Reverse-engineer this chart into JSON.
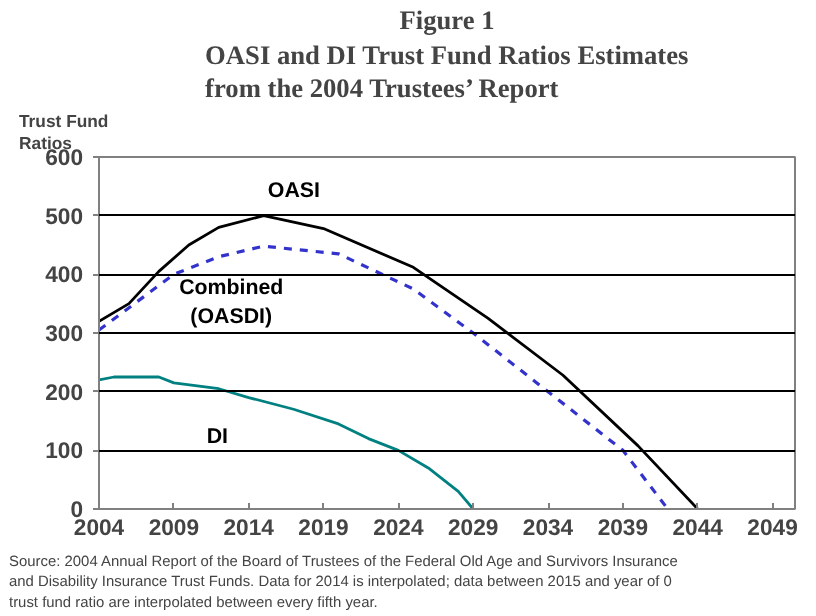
{
  "chart_data": {
    "type": "line",
    "title": "Figure 1",
    "subtitle": "OASI and DI Trust Fund Ratios Estimates from the 2004 Trustees’ Report",
    "ylabel": "Trust Fund Ratios",
    "xlim": [
      2004,
      2050.5
    ],
    "xticks": [
      2004,
      2009,
      2014,
      2019,
      2024,
      2029,
      2034,
      2039,
      2044,
      2049
    ],
    "ylim": [
      0,
      600
    ],
    "yticks": [
      0,
      100,
      200,
      300,
      400,
      500,
      600
    ],
    "grid": "y",
    "marker": "none",
    "series": [
      {
        "name": "OASI",
        "color": "#000000",
        "line_style": "solid",
        "x": [
          2004,
          2006,
          2008,
          2010,
          2012,
          2015,
          2019,
          2025,
          2030,
          2035,
          2040,
          2044
        ],
        "values": [
          320,
          350,
          405,
          450,
          480,
          500,
          478,
          412,
          325,
          228,
          108,
          0
        ]
      },
      {
        "name": "Combined (OASDI)",
        "color": "#3333cc",
        "line_style": "dashed",
        "x": [
          2004,
          2009,
          2012,
          2015,
          2020,
          2025,
          2029,
          2034,
          2039,
          2042
        ],
        "values": [
          305,
          400,
          430,
          448,
          435,
          375,
          300,
          200,
          100,
          0
        ]
      },
      {
        "name": "DI",
        "color": "#008080",
        "line_style": "solid",
        "x": [
          2004,
          2005,
          2008,
          2009,
          2012,
          2014,
          2017,
          2020,
          2022,
          2024,
          2026,
          2028,
          2029
        ],
        "values": [
          220,
          225,
          225,
          215,
          205,
          190,
          170,
          145,
          120,
          100,
          70,
          30,
          0
        ]
      }
    ],
    "annotations": [
      "Source: 2004 Annual Report of the Board of Trustees of the Federal Old Age and Survivors Insurance and Disability Insurance Trust Funds. Data for 2014 is interpolated; data between 2015 and year of 0 trust fund ratio are interpolated between every fifth year."
    ]
  }
}
